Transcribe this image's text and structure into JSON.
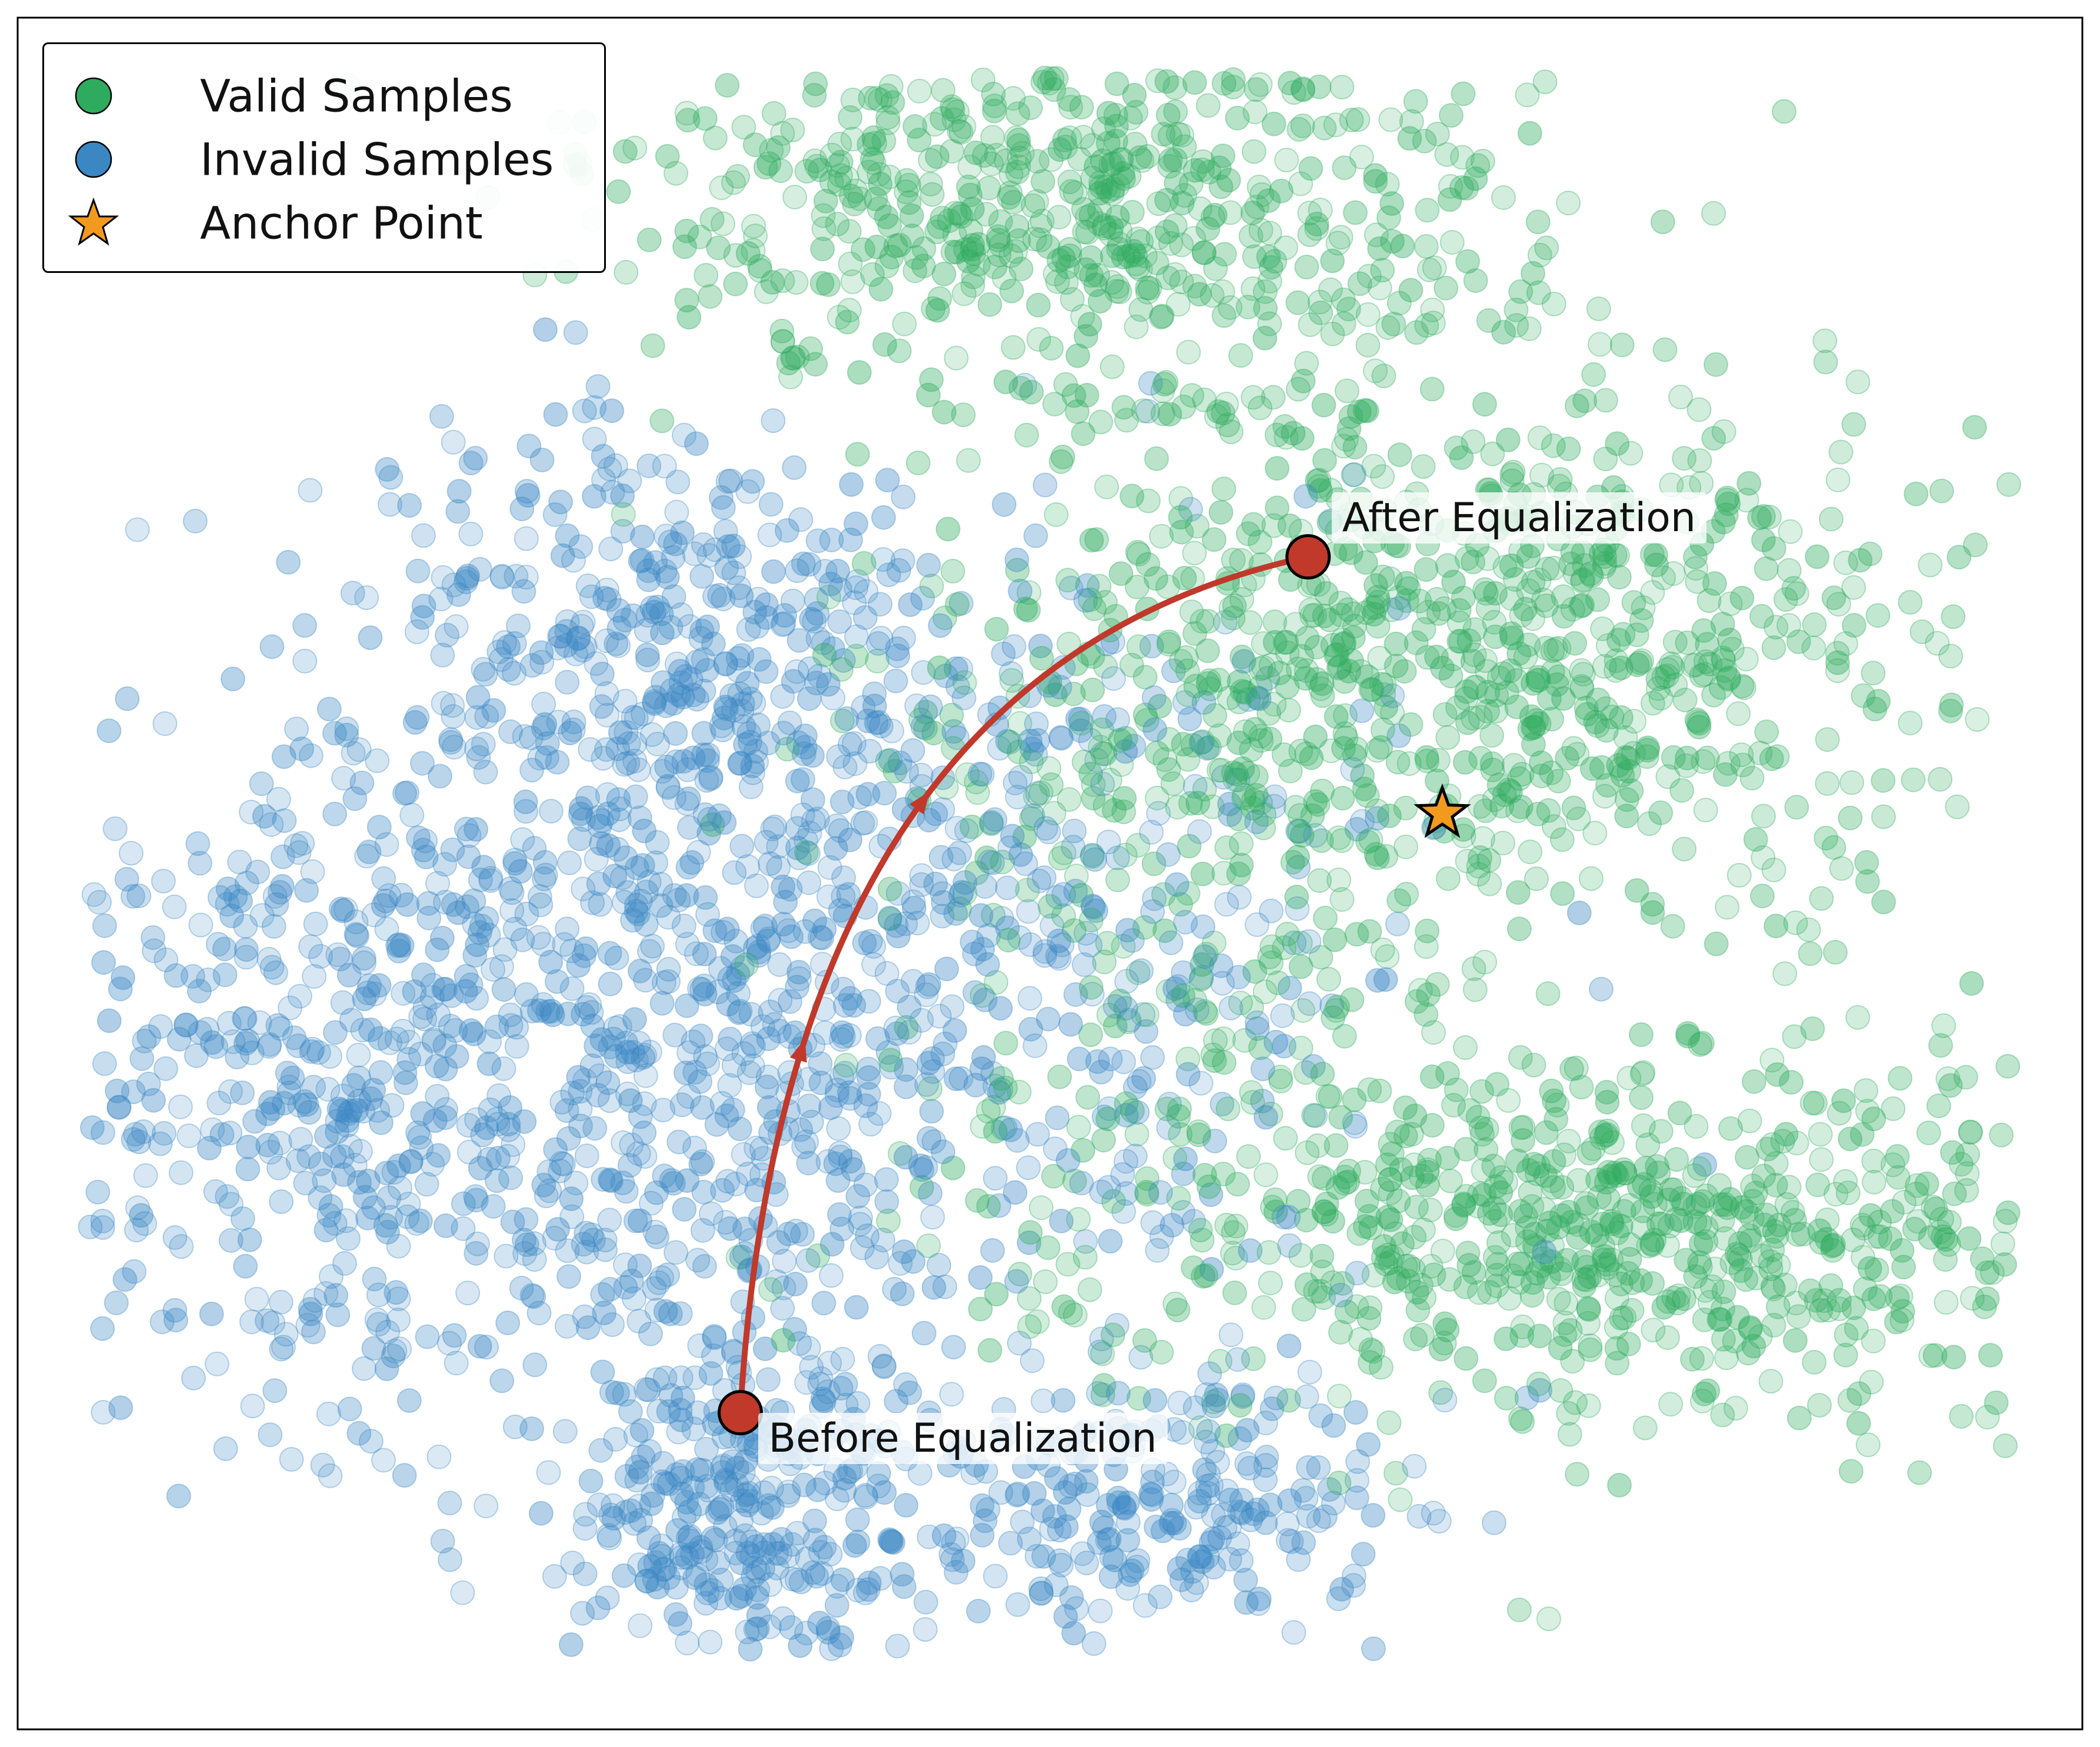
{
  "chart_data": {
    "type": "scatter",
    "title": "",
    "xlabel": "",
    "ylabel": "",
    "grid": false,
    "axis_ticks": false,
    "legend_placement": "top-left",
    "xlim": [
      -1.0,
      1.0
    ],
    "ylim": [
      -1.0,
      1.0
    ],
    "colors": {
      "valid": "#2eab5e",
      "invalid": "#3a87c4",
      "anchor": "#f29a1e",
      "path": "#c0392b"
    },
    "legend": [
      {
        "key": "valid",
        "label": "Valid Samples",
        "marker": "circle",
        "color": "#2eab5e"
      },
      {
        "key": "invalid",
        "label": "Invalid Samples",
        "marker": "circle",
        "color": "#3a87c4"
      },
      {
        "key": "anchor",
        "label": "Anchor Point",
        "marker": "star",
        "color": "#f29a1e"
      }
    ],
    "series": [
      {
        "name": "Valid Samples",
        "key": "valid",
        "clusters": [
          {
            "cx": 0.02,
            "cy": 0.78,
            "sx": 0.22,
            "sy": 0.12,
            "n": 650
          },
          {
            "cx": 0.42,
            "cy": 0.28,
            "sx": 0.22,
            "sy": 0.16,
            "n": 760
          },
          {
            "cx": 0.56,
            "cy": -0.42,
            "sx": 0.28,
            "sy": 0.11,
            "n": 760
          },
          {
            "cx": 0.18,
            "cy": 0.02,
            "sx": 0.2,
            "sy": 0.2,
            "n": 260
          }
        ]
      },
      {
        "name": "Invalid Samples",
        "key": "invalid",
        "clusters": [
          {
            "cx": -0.55,
            "cy": -0.2,
            "sx": 0.3,
            "sy": 0.22,
            "n": 1150
          },
          {
            "cx": -0.36,
            "cy": 0.28,
            "sx": 0.14,
            "sy": 0.12,
            "n": 320
          },
          {
            "cx": -0.3,
            "cy": -0.75,
            "sx": 0.09,
            "sy": 0.14,
            "n": 360
          },
          {
            "cx": 0.09,
            "cy": -0.73,
            "sx": 0.13,
            "sy": 0.08,
            "n": 260
          },
          {
            "cx": -0.08,
            "cy": -0.05,
            "sx": 0.2,
            "sy": 0.22,
            "n": 380
          }
        ]
      }
    ],
    "anchor_point": {
      "x": 0.38,
      "y": 0.07
    },
    "trajectory": {
      "start": {
        "x": -0.3,
        "y": -0.63,
        "label": "Before Equalization"
      },
      "end": {
        "x": 0.25,
        "y": 0.37,
        "label": "After Equalization"
      }
    }
  }
}
